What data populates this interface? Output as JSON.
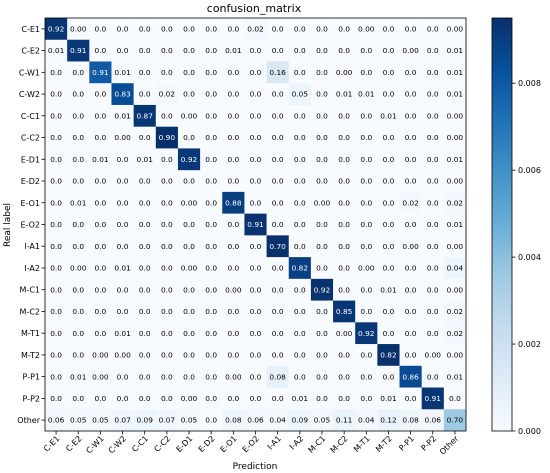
{
  "chart_data": {
    "type": "heatmap",
    "title": "confusion_matrix",
    "xlabel": "Prediction",
    "ylabel": "Real label",
    "labels": [
      "C-E1",
      "C-E2",
      "C-W1",
      "C-W2",
      "C-C1",
      "C-C2",
      "E-D1",
      "E-D2",
      "E-O1",
      "E-O2",
      "I-A1",
      "I-A2",
      "M-C1",
      "M-C2",
      "M-T1",
      "M-T2",
      "P-P1",
      "P-P2",
      "Other"
    ],
    "matrix": [
      [
        "0.92",
        "0.00",
        "0.0",
        "0.0",
        "0.0",
        "0.0",
        "0.0",
        "0.0",
        "0.0",
        "0.02",
        "0.0",
        "0.0",
        "0.0",
        "0.0",
        "0.00",
        "0.0",
        "0.0",
        "0.0",
        "0.00"
      ],
      [
        "0.01",
        "0.91",
        "0.0",
        "0.0",
        "0.0",
        "0.0",
        "0.0",
        "0.0",
        "0.01",
        "0.0",
        "0.0",
        "0.0",
        "0.0",
        "0.0",
        "0.0",
        "0.0",
        "0.00",
        "0.0",
        "0.01"
      ],
      [
        "0.0",
        "0.0",
        "0.91",
        "0.01",
        "0.0",
        "0.0",
        "0.0",
        "0.0",
        "0.0",
        "0.0",
        "0.16",
        "0.0",
        "0.0",
        "0.00",
        "0.0",
        "0.0",
        "0.0",
        "0.0",
        "0.01"
      ],
      [
        "0.0",
        "0.0",
        "0.0",
        "0.83",
        "0.0",
        "0.02",
        "0.0",
        "0.0",
        "0.0",
        "0.0",
        "0.0",
        "0.05",
        "0.0",
        "0.01",
        "0.01",
        "0.0",
        "0.0",
        "0.0",
        "0.01"
      ],
      [
        "0.0",
        "0.0",
        "0.0",
        "0.01",
        "0.87",
        "0.0",
        "0.00",
        "0.0",
        "0.0",
        "0.0",
        "0.0",
        "0.0",
        "0.0",
        "0.0",
        "0.0",
        "0.01",
        "0.0",
        "0.0",
        "0.00"
      ],
      [
        "0.0",
        "0.0",
        "0.0",
        "0.00",
        "0.0",
        "0.90",
        "0.0",
        "0.0",
        "0.0",
        "0.0",
        "0.0",
        "0.0",
        "0.0",
        "0.0",
        "0.0",
        "0.0",
        "0.0",
        "0.0",
        "0.00"
      ],
      [
        "0.0",
        "0.0",
        "0.01",
        "0.0",
        "0.01",
        "0.0",
        "0.92",
        "0.0",
        "0.0",
        "0.0",
        "0.0",
        "0.0",
        "0.0",
        "0.0",
        "0.0",
        "0.0",
        "0.0",
        "0.0",
        "0.01"
      ],
      [
        "0.0",
        "0.0",
        "0.0",
        "0.0",
        "0.0",
        "0.0",
        "0.0",
        "0.0",
        "0.0",
        "0.0",
        "0.0",
        "0.0",
        "0.0",
        "0.0",
        "0.0",
        "0.0",
        "0.0",
        "0.0",
        "0.00"
      ],
      [
        "0.0",
        "0.01",
        "0.0",
        "0.0",
        "0.0",
        "0.0",
        "0.00",
        "0.0",
        "0.88",
        "0.0",
        "0.0",
        "0.0",
        "0.00",
        "0.0",
        "0.0",
        "0.0",
        "0.02",
        "0.0",
        "0.02"
      ],
      [
        "0.0",
        "0.0",
        "0.0",
        "0.0",
        "0.0",
        "0.0",
        "0.0",
        "0.0",
        "0.0",
        "0.91",
        "0.0",
        "0.0",
        "0.0",
        "0.0",
        "0.0",
        "0.0",
        "0.0",
        "0.0",
        "0.01"
      ],
      [
        "0.0",
        "0.0",
        "0.0",
        "0.0",
        "0.0",
        "0.0",
        "0.0",
        "0.0",
        "0.0",
        "0.0",
        "0.70",
        "0.0",
        "0.0",
        "0.0",
        "0.0",
        "0.0",
        "0.00",
        "0.0",
        "0.00"
      ],
      [
        "0.0",
        "0.00",
        "0.0",
        "0.01",
        "0.0",
        "0.0",
        "0.00",
        "0.0",
        "0.0",
        "0.0",
        "0.0",
        "0.82",
        "0.0",
        "0.0",
        "0.00",
        "0.0",
        "0.0",
        "0.0",
        "0.04"
      ],
      [
        "0.0",
        "0.0",
        "0.0",
        "0.0",
        "0.0",
        "0.0",
        "0.0",
        "0.0",
        "0.00",
        "0.0",
        "0.0",
        "0.0",
        "0.92",
        "0.0",
        "0.0",
        "0.01",
        "0.0",
        "0.0",
        "0.00"
      ],
      [
        "0.0",
        "0.0",
        "0.0",
        "0.0",
        "0.0",
        "0.0",
        "0.0",
        "0.0",
        "0.0",
        "0.0",
        "0.0",
        "0.0",
        "0.0",
        "0.85",
        "0.0",
        "0.0",
        "0.0",
        "0.0",
        "0.02"
      ],
      [
        "0.0",
        "0.0",
        "0.0",
        "0.01",
        "0.0",
        "0.0",
        "0.0",
        "0.0",
        "0.0",
        "0.0",
        "0.0",
        "0.0",
        "0.0",
        "0.00",
        "0.92",
        "0.0",
        "0.0",
        "0.0",
        "0.02"
      ],
      [
        "0.0",
        "0.0",
        "0.00",
        "0.00",
        "0.0",
        "0.0",
        "0.0",
        "0.0",
        "0.0",
        "0.0",
        "0.0",
        "0.0",
        "0.0",
        "0.0",
        "0.0",
        "0.82",
        "0.0",
        "0.00",
        "0.00"
      ],
      [
        "0.0",
        "0.01",
        "0.00",
        "0.0",
        "0.0",
        "0.0",
        "0.0",
        "0.0",
        "0.00",
        "0.0",
        "0.08",
        "0.0",
        "0.0",
        "0.0",
        "0.0",
        "0.0",
        "0.86",
        "0.0",
        "0.01"
      ],
      [
        "0.0",
        "0.0",
        "0.0",
        "0.0",
        "0.0",
        "0.0",
        "0.00",
        "0.0",
        "0.0",
        "0.0",
        "0.0",
        "0.01",
        "0.0",
        "0.0",
        "0.0",
        "0.01",
        "0.0",
        "0.91",
        "0.0"
      ],
      [
        "0.06",
        "0.05",
        "0.05",
        "0.07",
        "0.09",
        "0.07",
        "0.05",
        "0.0",
        "0.08",
        "0.06",
        "0.04",
        "0.09",
        "0.05",
        "0.11",
        "0.04",
        "0.12",
        "0.08",
        "0.06",
        "0.70"
      ]
    ],
    "colorbar": {
      "ticks": [
        "0.000",
        "0.002",
        "0.004",
        "0.006",
        "0.008"
      ],
      "range": [
        0,
        0.0095
      ],
      "colors": [
        "#f7fbff",
        "#deebf7",
        "#c6dbef",
        "#9ecae1",
        "#6baed6",
        "#4292c6",
        "#2171b5",
        "#08519c",
        "#08306b"
      ]
    },
    "grid": false
  }
}
